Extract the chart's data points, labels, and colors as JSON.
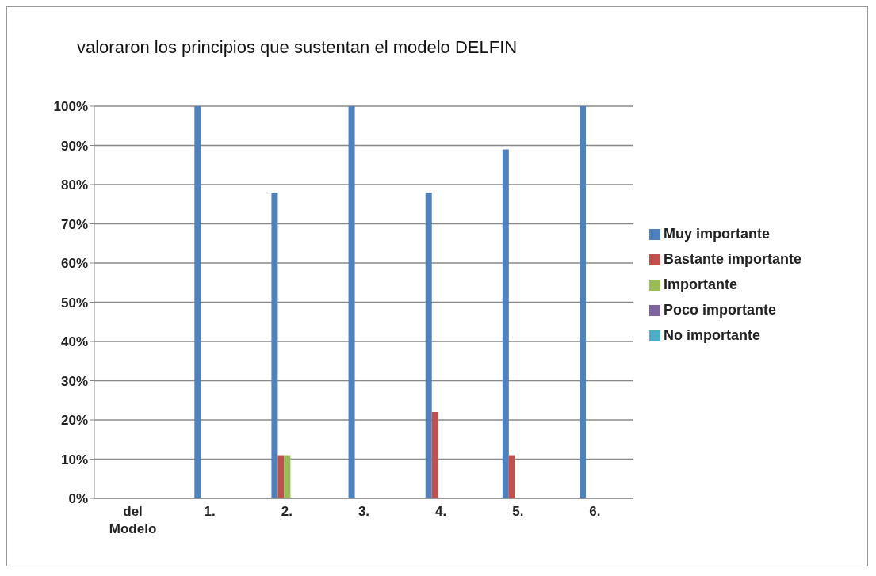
{
  "chart_data": {
    "type": "bar",
    "title": "valoraron los principios que sustentan el modelo DELFIN",
    "categories": [
      "del Modelo",
      "1.",
      "2.",
      "3.",
      "4.",
      "5.",
      "6."
    ],
    "series": [
      {
        "name": "Muy importante",
        "color": "#4f81bd",
        "values": [
          null,
          100,
          78,
          100,
          78,
          89,
          100
        ]
      },
      {
        "name": "Bastante importante",
        "color": "#c0504d",
        "values": [
          null,
          0,
          11,
          0,
          22,
          11,
          0
        ]
      },
      {
        "name": "Importante",
        "color": "#9bbb59",
        "values": [
          null,
          0,
          11,
          0,
          0,
          0,
          0
        ]
      },
      {
        "name": "Poco importante",
        "color": "#8064a2",
        "values": [
          null,
          0,
          0,
          0,
          0,
          0,
          0
        ]
      },
      {
        "name": "No importante",
        "color": "#4bacc6",
        "values": [
          null,
          0,
          0,
          0,
          0,
          0,
          0
        ]
      }
    ],
    "ylim": [
      0,
      100
    ],
    "yticks": [
      {
        "value": 0,
        "label": "0%"
      },
      {
        "value": 10,
        "label": "10%"
      },
      {
        "value": 20,
        "label": "20%"
      },
      {
        "value": 30,
        "label": "30%"
      },
      {
        "value": 40,
        "label": "40%"
      },
      {
        "value": 50,
        "label": "50%"
      },
      {
        "value": 60,
        "label": "60%"
      },
      {
        "value": 70,
        "label": "70%"
      },
      {
        "value": 80,
        "label": "80%"
      },
      {
        "value": 90,
        "label": "90%"
      },
      {
        "value": 100,
        "label": "100%"
      }
    ],
    "grid": "y",
    "legend": "right"
  }
}
